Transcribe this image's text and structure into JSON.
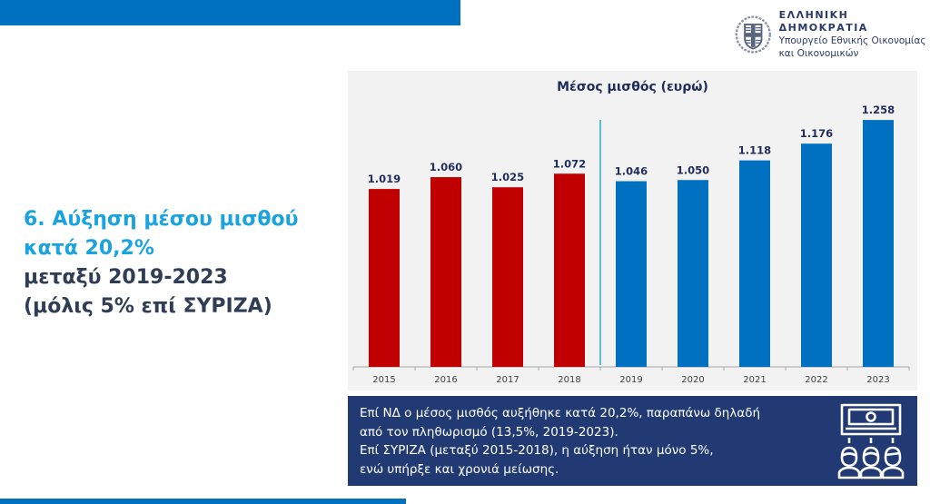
{
  "header": {
    "org_title": "ΕΛΛΗΝΙΚΗ ΔΗΜΟΚΡΑΤΙΑ",
    "org_sub_line1": "Υπουργείο Εθνικής Οικονομίας",
    "org_sub_line2": "και Οικονομικών",
    "emblem_icon": "greek-coat-of-arms-icon"
  },
  "headline": {
    "line1": "6. Αύξηση μέσου μισθού",
    "line2": "κατά 20,2%",
    "line3": "μεταξύ 2019-2023",
    "line4": "(μόλις 5% επί ΣΥΡΙΖΑ)"
  },
  "info": {
    "line1": "Επί ΝΔ ο μέσος μισθός αυξήθηκε κατά 20,2%, παραπάνω δηλαδή",
    "line2": "από τον πληθωρισμό (13,5%, 2019-2023).",
    "line3": "Επί ΣΥΡΙΖΑ (μεταξύ 2015-2018), η αύξηση ήταν μόνο 5%,",
    "line4": "ενώ υπήρξε και χρονιά μείωσης.",
    "icon": "salary-people-icon"
  },
  "colors": {
    "brand_blue": "#0070c0",
    "syriza_red": "#c00000",
    "nd_blue": "#0070c0",
    "headline_blue": "#1ba3e0",
    "headline_dark": "#2f3e55",
    "info_bg": "#213a73",
    "divider": "#29a9d8"
  },
  "chart_data": {
    "type": "bar",
    "title": "Μέσος μισθός (ευρώ)",
    "xlabel": "",
    "ylabel": "",
    "categories": [
      "2015",
      "2016",
      "2017",
      "2018",
      "2019",
      "2020",
      "2021",
      "2022",
      "2023"
    ],
    "values": [
      1019,
      1060,
      1025,
      1072,
      1046,
      1050,
      1118,
      1176,
      1258
    ],
    "value_labels": [
      "1.019",
      "1.060",
      "1.025",
      "1.072",
      "1.046",
      "1.050",
      "1.118",
      "1.176",
      "1.258"
    ],
    "bar_groups": [
      "red",
      "red",
      "red",
      "red",
      "blue",
      "blue",
      "blue",
      "blue",
      "blue"
    ],
    "divider_between": [
      "2018",
      "2019"
    ],
    "grid": false,
    "legend": "none"
  }
}
